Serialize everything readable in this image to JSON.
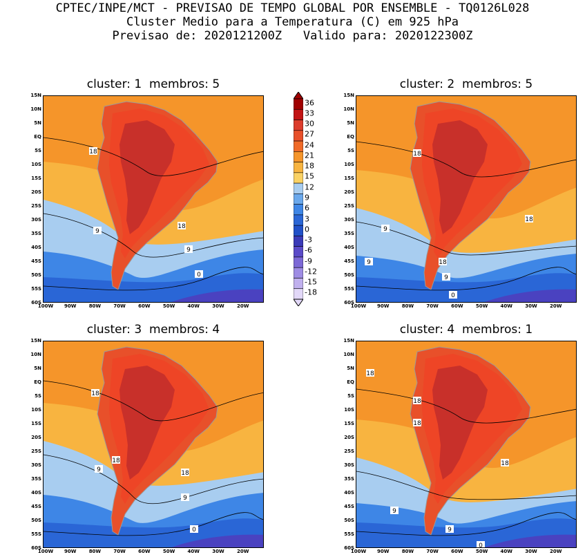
{
  "header": {
    "line1": "CPTEC/INPE/MCT - PREVISAO DE TEMPO GLOBAL POR ENSEMBLE - TQ0126L028",
    "line2": "Cluster Medio para a Temperatura (C) em 925 hPa",
    "line3": "Previsao de: 2020121200Z   Valido para: 2020122300Z"
  },
  "panels": [
    {
      "title": "cluster: 1  membros: 5",
      "labels": [
        "18",
        "9",
        "18",
        "9",
        "0"
      ]
    },
    {
      "title": "cluster: 2  membros: 5",
      "labels": [
        "18",
        "9",
        "9",
        "18",
        "18",
        "9",
        "0"
      ]
    },
    {
      "title": "cluster: 3  membros: 4",
      "labels": [
        "18",
        "18",
        "9",
        "18",
        "9",
        "0"
      ]
    },
    {
      "title": "cluster: 4  membros: 1",
      "labels": [
        "18",
        "18",
        "18",
        "18",
        "9",
        "9",
        "0"
      ]
    }
  ],
  "axes": {
    "lat_ticks": [
      "15N",
      "10N",
      "5N",
      "EQ",
      "5S",
      "10S",
      "15S",
      "20S",
      "25S",
      "30S",
      "35S",
      "40S",
      "45S",
      "50S",
      "55S",
      "60S"
    ],
    "lon_ticks": [
      "100W",
      "90W",
      "80W",
      "70W",
      "60W",
      "50W",
      "40W",
      "30W",
      "20W"
    ]
  },
  "colorbar": {
    "labels": [
      "36",
      "33",
      "30",
      "27",
      "24",
      "21",
      "18",
      "15",
      "12",
      "9",
      "6",
      "3",
      "0",
      "-3",
      "-6",
      "-9",
      "-12",
      "-15",
      "-18"
    ],
    "colors": [
      "#a00000",
      "#c21414",
      "#dc3c2c",
      "#e8502a",
      "#f06a28",
      "#f5952a",
      "#f8b440",
      "#fad264",
      "#a8cdf0",
      "#6aa8ec",
      "#3e86e6",
      "#2a66d6",
      "#2050c8",
      "#3a3ab8",
      "#5a4ac8",
      "#7c68d6",
      "#9e8ce4",
      "#c0b0ee",
      "#e2d8f8"
    ]
  },
  "colors": {
    "ocean_warm": "#f5952a",
    "ocean_mid": "#f8b440",
    "land_hot": "#e8502a",
    "land_core": "#c8302a",
    "cool": "#a8cdf0",
    "cold": "#3e86e6",
    "colder": "#2a66d6",
    "polar": "#4a42c0",
    "coast": "#9a9a9a"
  }
}
